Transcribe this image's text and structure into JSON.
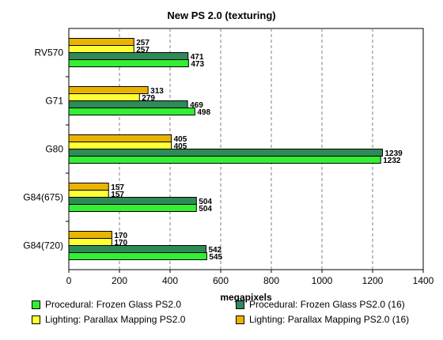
{
  "chart_data": {
    "type": "bar",
    "orientation": "horizontal",
    "title": "New PS 2.0 (texturing)",
    "xlabel": "megapixels",
    "ylabel": "",
    "xlim": [
      0,
      1400
    ],
    "xticks": [
      0,
      200,
      400,
      600,
      800,
      1000,
      1200,
      1400
    ],
    "grid": "vertical dashed",
    "legend_position": "bottom",
    "categories": [
      "RV570",
      "G71",
      "G80",
      "G84(675)",
      "G84(720)"
    ],
    "series": [
      {
        "name": "Lighting: Parallax Mapping PS2.0 (16)",
        "color": "#e8b400",
        "values": [
          257,
          313,
          405,
          157,
          170
        ]
      },
      {
        "name": "Lighting: Parallax Mapping PS2.0",
        "color": "#ffff33",
        "values": [
          257,
          279,
          405,
          157,
          170
        ]
      },
      {
        "name": "Procedural: Frozen Glass PS2.0 (16)",
        "color": "#2e8b57",
        "values": [
          471,
          469,
          1239,
          504,
          542
        ]
      },
      {
        "name": "Procedural: Frozen Glass PS2.0",
        "color": "#33ee33",
        "values": [
          473,
          498,
          1232,
          504,
          545
        ]
      }
    ],
    "legend_order": [
      3,
      2,
      1,
      0
    ]
  }
}
